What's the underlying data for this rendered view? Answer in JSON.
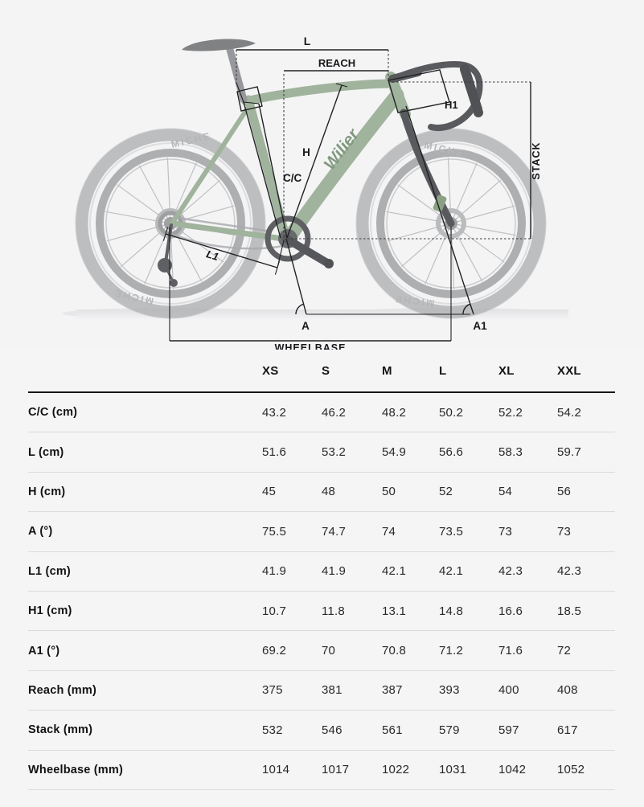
{
  "diagram": {
    "labels": {
      "l": "L",
      "reach": "REACH",
      "h1": "H1",
      "stack": "STACK",
      "h": "H",
      "cc": "C/C",
      "l1": "L1",
      "a": "A",
      "a1": "A1",
      "wheelbase": "WHEELBASE"
    },
    "brand": "Wilier",
    "wheel_brand": "MICHE",
    "colors": {
      "background": "#f4f4f5",
      "frame_green": "#92a88d",
      "annotation": "#202124"
    }
  },
  "table": {
    "columns": [
      "XS",
      "S",
      "M",
      "L",
      "XL",
      "XXL"
    ],
    "rows": [
      {
        "label": "C/C (cm)",
        "values": [
          "43.2",
          "46.2",
          "48.2",
          "50.2",
          "52.2",
          "54.2"
        ]
      },
      {
        "label": "L (cm)",
        "values": [
          "51.6",
          "53.2",
          "54.9",
          "56.6",
          "58.3",
          "59.7"
        ]
      },
      {
        "label": "H (cm)",
        "values": [
          "45",
          "48",
          "50",
          "52",
          "54",
          "56"
        ]
      },
      {
        "label": "A (°)",
        "values": [
          "75.5",
          "74.7",
          "74",
          "73.5",
          "73",
          "73"
        ]
      },
      {
        "label": "L1 (cm)",
        "values": [
          "41.9",
          "41.9",
          "42.1",
          "42.1",
          "42.3",
          "42.3"
        ]
      },
      {
        "label": "H1 (cm)",
        "values": [
          "10.7",
          "11.8",
          "13.1",
          "14.8",
          "16.6",
          "18.5"
        ]
      },
      {
        "label": "A1 (°)",
        "values": [
          "69.2",
          "70",
          "70.8",
          "71.2",
          "71.6",
          "72"
        ]
      },
      {
        "label": "Reach (mm)",
        "values": [
          "375",
          "381",
          "387",
          "393",
          "400",
          "408"
        ]
      },
      {
        "label": "Stack (mm)",
        "values": [
          "532",
          "546",
          "561",
          "579",
          "597",
          "617"
        ]
      },
      {
        "label": "Wheelbase (mm)",
        "values": [
          "1014",
          "1017",
          "1022",
          "1031",
          "1042",
          "1052"
        ]
      }
    ]
  }
}
